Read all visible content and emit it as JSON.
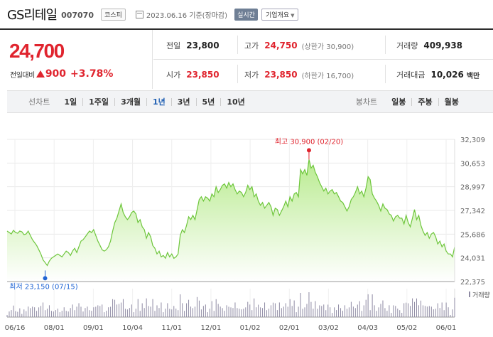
{
  "header": {
    "stock_name": "GS리테일",
    "stock_code": "007070",
    "market": "코스피",
    "date_text": "2023.06.16 기준(장마감)",
    "realtime_label": "실시간",
    "info_label": "기업개요"
  },
  "price": {
    "current": "24,700",
    "change_label": "전일대비",
    "change_amount": "900",
    "change_percent": "+3.78%"
  },
  "stats": {
    "prev_close": {
      "label": "전일",
      "value": "23,800"
    },
    "high": {
      "label": "고가",
      "value": "24,750",
      "sub": "(상한가 30,900)"
    },
    "volume": {
      "label": "거래량",
      "value": "409,938"
    },
    "open": {
      "label": "시가",
      "value": "23,850"
    },
    "low": {
      "label": "저가",
      "value": "23,850",
      "sub": "(하한가 16,700)"
    },
    "trade_value": {
      "label": "거래대금",
      "value": "10,026",
      "unit": "백만"
    }
  },
  "tabs": {
    "line_label": "선차트",
    "line_tabs": [
      "1일",
      "1주일",
      "3개월",
      "1년",
      "3년",
      "5년",
      "10년"
    ],
    "active_index": 3,
    "candle_label": "봉차트",
    "candle_tabs": [
      "일봉",
      "주봉",
      "월봉"
    ]
  },
  "colors": {
    "up": "#e0242e",
    "line": "#6ec63c",
    "fill_top": "#b9eb90",
    "low_marker": "#1f64d4"
  },
  "chart_data": {
    "type": "area",
    "y_ticks": [
      "32,309",
      "30,653",
      "28,997",
      "27,342",
      "25,686",
      "24,031",
      "22,375"
    ],
    "ylim": [
      22375,
      32309
    ],
    "x_ticks": [
      "06/16",
      "08/01",
      "09/01",
      "10/04",
      "11/01",
      "12/01",
      "01/02",
      "02/01",
      "03/02",
      "04/03",
      "05/02",
      "06/01"
    ],
    "high_annotation": "최고 30,900 (02/20)",
    "low_annotation": "최저 23,150 (07/15)",
    "high": {
      "value": 30900,
      "index": 143
    },
    "low": {
      "value": 23150,
      "index": 18
    },
    "volume_label": "거래량",
    "values": [
      25900,
      25800,
      25700,
      25950,
      25800,
      25750,
      25900,
      25850,
      25650,
      25700,
      25900,
      25600,
      25300,
      25100,
      24900,
      24600,
      24300,
      23900,
      23700,
      23500,
      23800,
      24000,
      24100,
      24200,
      24300,
      24200,
      24100,
      24300,
      24500,
      24400,
      24200,
      24500,
      24700,
      24400,
      24800,
      25200,
      25300,
      25500,
      25700,
      25900,
      25800,
      26000,
      25600,
      25200,
      24900,
      24600,
      24500,
      24600,
      24800,
      25200,
      25900,
      26500,
      26800,
      27300,
      27800,
      27200,
      26900,
      26700,
      26900,
      27200,
      27300,
      27100,
      26500,
      26700,
      26200,
      26000,
      25400,
      25800,
      25500,
      24900,
      24700,
      24300,
      24500,
      24100,
      24200,
      24000,
      24400,
      24100,
      24300,
      24000,
      24100,
      24300,
      25600,
      26000,
      25800,
      26300,
      26900,
      26700,
      27000,
      26700,
      27400,
      28100,
      28300,
      28000,
      28300,
      28200,
      28000,
      28500,
      28300,
      29000,
      28600,
      28800,
      29100,
      29200,
      28900,
      29300,
      29000,
      29200,
      28800,
      28500,
      28700,
      28600,
      28300,
      28600,
      29100,
      28800,
      29000,
      28300,
      28500,
      28000,
      27700,
      27900,
      27500,
      27700,
      27900,
      27600,
      27000,
      27500,
      27400,
      27000,
      27300,
      27600,
      28000,
      27600,
      28300,
      28000,
      28500,
      28600,
      28300,
      30200,
      29900,
      30200,
      29800,
      30900,
      30300,
      30500,
      30000,
      29700,
      29300,
      29000,
      28700,
      28900,
      28500,
      28700,
      28800,
      28500,
      28600,
      28300,
      28000,
      27900,
      27600,
      27300,
      27600,
      28100,
      28300,
      28600,
      29000,
      28500,
      28700,
      28300,
      28900,
      29700,
      29500,
      28500,
      28200,
      28000,
      27700,
      27300,
      27800,
      27500,
      27400,
      27100,
      27000,
      26600,
      26900,
      27000,
      26800,
      26800,
      26400,
      27000,
      26500,
      26200,
      26800,
      27400,
      26700,
      27000,
      26300,
      25900,
      25600,
      25800,
      25400,
      25700,
      25800,
      25500,
      25000,
      25200,
      24800,
      25000,
      24500,
      24300,
      24300,
      24100,
      24800
    ]
  }
}
